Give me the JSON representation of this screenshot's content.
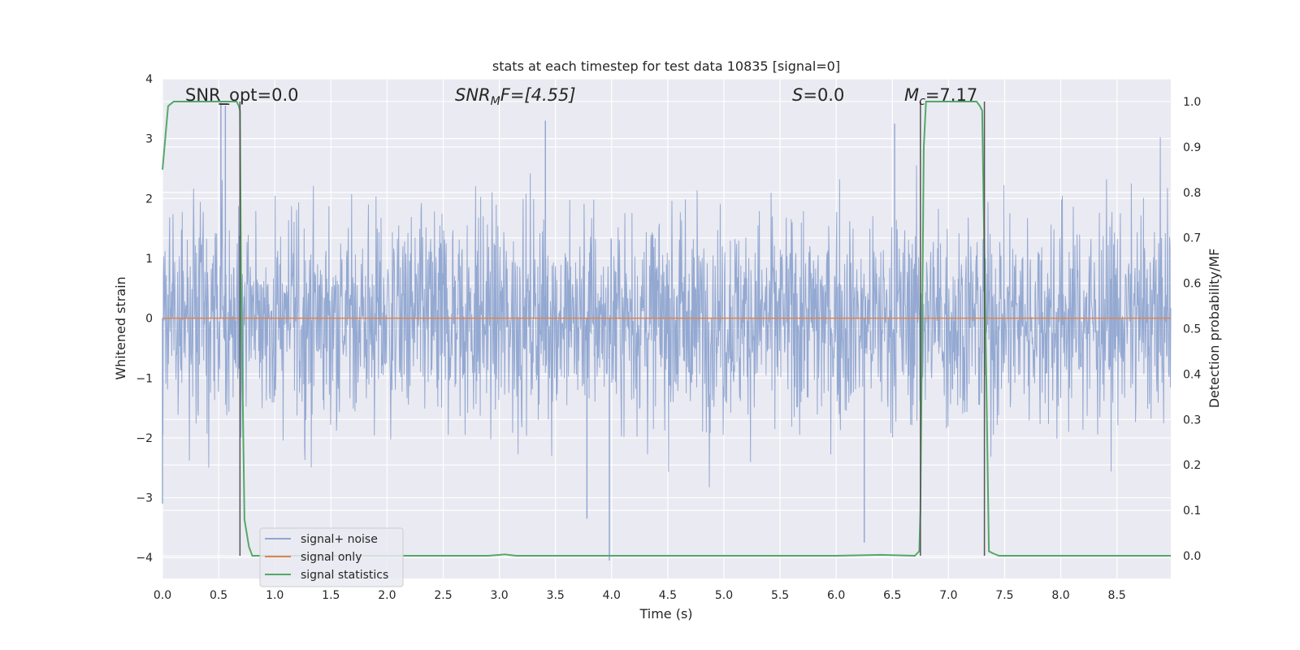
{
  "chart_data": {
    "type": "line",
    "title": "stats at each timestep for test data 10835 [signal=0]",
    "xlabel": "Time (s)",
    "ylabel": "Whitened strain",
    "y2label": "Detection probability/MF",
    "xlim": [
      0.0,
      8.98
    ],
    "ylim": [
      -4.35,
      4.0
    ],
    "y2lim": [
      -0.05,
      1.05
    ],
    "xticks": [
      "0.0",
      "0.5",
      "1.0",
      "1.5",
      "2.0",
      "2.5",
      "3.0",
      "3.5",
      "4.0",
      "4.5",
      "5.0",
      "5.5",
      "6.0",
      "6.5",
      "7.0",
      "7.5",
      "8.0",
      "8.5"
    ],
    "yticks": [
      "4",
      "3",
      "2",
      "1",
      "0",
      "−1",
      "−2",
      "−3",
      "−4"
    ],
    "y2ticks": [
      "1.0",
      "0.9",
      "0.8",
      "0.7",
      "0.6",
      "0.5",
      "0.4",
      "0.3",
      "0.2",
      "0.1",
      "0.0"
    ],
    "grid": true,
    "legend_position": "lower-left",
    "annotations": {
      "snr_opt": "SNR_opt=0.0",
      "snr_mf_prefix": "SNR",
      "snr_mf_sub": "M",
      "snr_mf_rest": "F=[4.55]",
      "s_var": "S",
      "s_rest": "=0.0",
      "mc_var": "M",
      "mc_sub": "c",
      "mc_rest": "=7.17"
    },
    "series": [
      {
        "name": "signal+ noise",
        "color": "#8fa5d0",
        "description_range": [
          -3.4,
          3.65
        ],
        "notable_points": [
          [
            0.0,
            -3.1
          ],
          [
            0.52,
            3.6
          ],
          [
            0.56,
            3.55
          ],
          [
            3.41,
            3.3
          ],
          [
            3.78,
            -3.35
          ],
          [
            3.98,
            -4.05
          ],
          [
            6.25,
            -3.75
          ],
          [
            6.52,
            3.25
          ]
        ]
      },
      {
        "name": "signal only",
        "color": "#dd8452",
        "x": [
          0.0,
          8.98
        ],
        "y": [
          0.0,
          0.0
        ]
      },
      {
        "name": "signal statistics",
        "color": "#55a868",
        "axis": "right",
        "x": [
          0.0,
          0.05,
          0.1,
          0.3,
          0.6,
          0.66,
          0.68,
          0.69,
          0.7,
          0.73,
          0.77,
          0.8,
          0.85,
          1.5,
          2.5,
          2.9,
          3.05,
          3.15,
          4.0,
          5.0,
          6.0,
          6.4,
          6.7,
          6.74,
          6.75,
          6.78,
          6.8,
          6.85,
          7.25,
          7.28,
          7.3,
          7.33,
          7.36,
          7.4,
          7.45,
          8.0,
          8.98
        ],
        "y": [
          0.85,
          0.99,
          1.0,
          1.0,
          1.0,
          1.0,
          0.99,
          0.98,
          0.6,
          0.08,
          0.02,
          0.0,
          0.0,
          0.0,
          0.0,
          0.0,
          0.003,
          0.0,
          0.0,
          0.0,
          0.0,
          0.002,
          0.0,
          0.01,
          0.1,
          0.9,
          1.0,
          1.0,
          1.0,
          0.99,
          0.98,
          0.5,
          0.01,
          0.005,
          0.0,
          0.0,
          0.0
        ]
      }
    ],
    "vertical_markers_x": [
      0.69,
      6.75,
      7.32
    ]
  }
}
